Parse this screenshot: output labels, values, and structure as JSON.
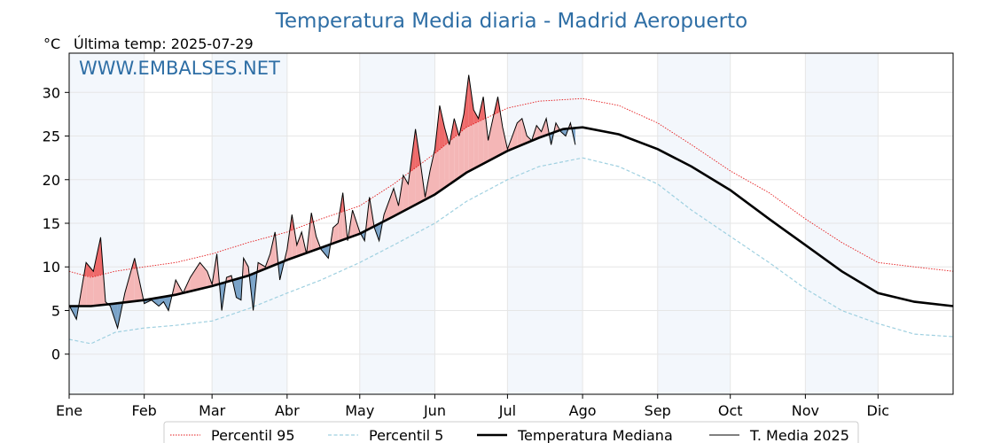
{
  "chart_data": {
    "type": "line",
    "title": "Temperatura Media diaria - Madrid Aeropuerto",
    "unit_label": "°C",
    "subtitle": "Última temp: 2025-07-29",
    "watermark": "WWW.EMBALSES.NET",
    "xlabel": "",
    "ylabel": "",
    "ylim": [
      -4.6,
      34.5
    ],
    "xlim": [
      1,
      366
    ],
    "y_ticks": [
      0,
      5,
      10,
      15,
      20,
      25,
      30
    ],
    "x_ticks": [
      {
        "label": "Ene",
        "day": 1
      },
      {
        "label": "Feb",
        "day": 32
      },
      {
        "label": "Mar",
        "day": 60
      },
      {
        "label": "Abr",
        "day": 91
      },
      {
        "label": "May",
        "day": 121
      },
      {
        "label": "Jun",
        "day": 152
      },
      {
        "label": "Jul",
        "day": 182
      },
      {
        "label": "Ago",
        "day": 213
      },
      {
        "label": "Sep",
        "day": 244
      },
      {
        "label": "Oct",
        "day": 274
      },
      {
        "label": "Nov",
        "day": 305
      },
      {
        "label": "Dic",
        "day": 335
      }
    ],
    "grid": true,
    "legend_position": "bottom",
    "colors": {
      "p95": "#e41a1c",
      "p5": "#9fd0e0",
      "median": "#000000",
      "current": "#000000",
      "above_fill": "#f4b6b6",
      "above_p95_fill": "#ee6a6a",
      "below_fill": "#7aa3c8",
      "band": "#f3f7fc",
      "title": "#2e6ea5",
      "watermark": "#2e6ea5"
    },
    "series": [
      {
        "name": "Percentil 95",
        "style": "dotted",
        "x": [
          1,
          10,
          20,
          32,
          45,
          60,
          75,
          91,
          105,
          121,
          135,
          152,
          165,
          182,
          195,
          213,
          228,
          244,
          258,
          274,
          290,
          305,
          320,
          335,
          350,
          366
        ],
        "values": [
          9.5,
          8.8,
          9.5,
          10,
          10.5,
          11.5,
          12.8,
          14,
          15.5,
          17,
          19.5,
          23,
          26,
          28.2,
          29,
          29.3,
          28.5,
          26.5,
          24,
          21,
          18.5,
          15.5,
          12.8,
          10.5,
          10,
          9.5
        ]
      },
      {
        "name": "Percentil 5",
        "style": "dashed",
        "x": [
          1,
          10,
          20,
          32,
          45,
          60,
          75,
          91,
          105,
          121,
          135,
          152,
          165,
          182,
          195,
          213,
          228,
          244,
          258,
          274,
          290,
          305,
          320,
          335,
          350,
          366
        ],
        "values": [
          1.7,
          1.2,
          2.5,
          3,
          3.3,
          3.8,
          5.2,
          7,
          8.5,
          10.5,
          12.5,
          15,
          17.5,
          20,
          21.5,
          22.5,
          21.5,
          19.5,
          16.5,
          13.5,
          10.5,
          7.5,
          5,
          3.5,
          2.3,
          2
        ]
      },
      {
        "name": "Temperatura Mediana",
        "style": "solid-thick",
        "x": [
          1,
          10,
          20,
          32,
          45,
          60,
          75,
          91,
          105,
          121,
          135,
          152,
          165,
          182,
          195,
          205,
          213,
          228,
          244,
          258,
          274,
          290,
          305,
          320,
          335,
          350,
          366
        ],
        "values": [
          5.5,
          5.5,
          5.8,
          6.2,
          6.8,
          7.8,
          9,
          10.8,
          12.2,
          13.8,
          15.8,
          18.3,
          20.8,
          23.3,
          24.8,
          25.8,
          26,
          25.2,
          23.5,
          21.5,
          18.8,
          15.5,
          12.5,
          9.5,
          7,
          6,
          5.5
        ]
      },
      {
        "name": "T. Media 2025",
        "style": "solid-thin",
        "x": [
          1,
          4,
          8,
          11,
          14,
          16,
          18,
          21,
          24,
          28,
          32,
          35,
          38,
          40,
          42,
          45,
          48,
          51,
          55,
          58,
          60,
          62,
          64,
          66,
          68,
          70,
          72,
          73,
          75,
          77,
          79,
          82,
          84,
          86,
          88,
          91,
          93,
          95,
          97,
          99,
          101,
          103,
          105,
          108,
          110,
          112,
          114,
          116,
          118,
          121,
          123,
          125,
          127,
          129,
          131,
          133,
          135,
          137,
          139,
          141,
          144,
          146,
          148,
          150,
          152,
          154,
          156,
          158,
          160,
          162,
          164,
          166,
          168,
          170,
          172,
          174,
          176,
          178,
          180,
          182,
          184,
          186,
          188,
          190,
          192,
          194,
          196,
          198,
          200,
          202,
          204,
          206,
          208,
          210
        ],
        "values": [
          5.6,
          4.0,
          10.5,
          9.5,
          13.4,
          6.0,
          5.5,
          3.0,
          7.0,
          11.0,
          5.8,
          6.2,
          5.5,
          6.0,
          5.0,
          8.5,
          7.0,
          8.8,
          10.5,
          9.5,
          8.0,
          11.5,
          5.0,
          8.8,
          9.0,
          6.5,
          6.2,
          11.0,
          10.0,
          5.0,
          10.5,
          10.0,
          11.5,
          14.0,
          8.5,
          12.0,
          16.0,
          12.5,
          14.0,
          11.5,
          16.2,
          13.5,
          12.0,
          11.0,
          14.5,
          15.0,
          18.5,
          13.0,
          16.5,
          14.0,
          13.0,
          18.0,
          14.5,
          13.0,
          16.0,
          17.5,
          19.0,
          17.0,
          20.5,
          19.5,
          25.8,
          22.0,
          18.0,
          21.0,
          23.5,
          28.5,
          26.0,
          24.0,
          27.0,
          25.0,
          27.5,
          32.0,
          28.0,
          27.0,
          29.5,
          24.5,
          27.0,
          29.5,
          26.0,
          23.5,
          25.0,
          26.5,
          27.0,
          25.0,
          24.5,
          26.2,
          25.5,
          27.0,
          24.0,
          26.5,
          25.5,
          25.0,
          26.5,
          24.0
        ]
      }
    ]
  }
}
